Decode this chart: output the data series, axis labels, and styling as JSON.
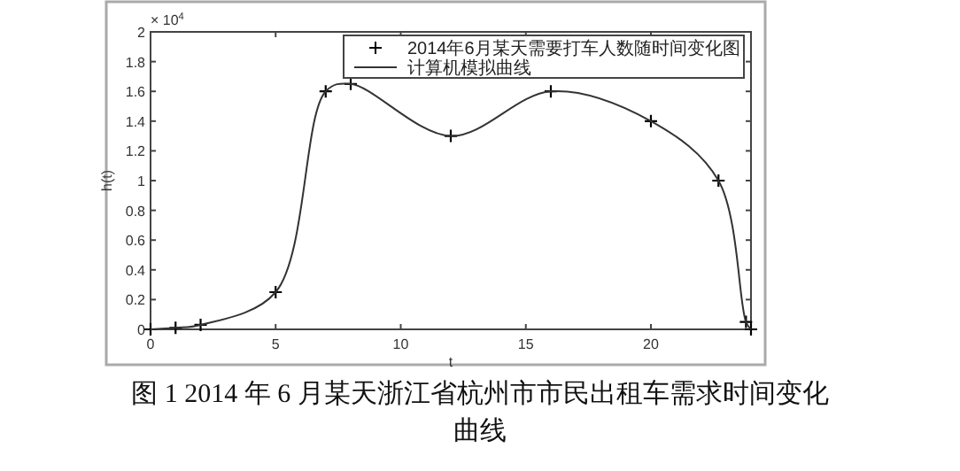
{
  "chart_data": {
    "type": "scatter",
    "x": [
      0,
      1,
      2,
      5,
      7,
      8,
      12,
      16,
      20,
      22.7,
      23.8,
      24
    ],
    "series": [
      {
        "name": "2014年6月某天需要打车人数随时间变化图",
        "color": "#000000",
        "marker": "cross",
        "values": [
          0,
          0.01,
          0.03,
          0.25,
          1.6,
          1.65,
          1.3,
          1.6,
          1.4,
          1.0,
          0.05,
          0
        ]
      },
      {
        "name": "计算机模拟曲线",
        "type": "line",
        "color": "#333333",
        "line_style": "solid",
        "marker": "none",
        "values": [
          0,
          0.01,
          0.03,
          0.25,
          1.6,
          1.65,
          1.3,
          1.6,
          1.4,
          1.0,
          0.05,
          0
        ]
      }
    ],
    "xlabel": "t",
    "ylabel": "h(t)",
    "xlim": [
      0,
      24
    ],
    "xticks": [
      0,
      5,
      10,
      15,
      20
    ],
    "ylim": [
      0,
      2
    ],
    "yticks": [
      0,
      0.2,
      0.4,
      0.6,
      0.8,
      1,
      1.2,
      1.4,
      1.6,
      1.8,
      2
    ],
    "legend": "top right",
    "grid": false,
    "annotations": [
      "× 10$^{4}$",
      "图 1   2014 年 6 月某天浙江省杭州市市民出租车需求时间变化曲线"
    ]
  }
}
